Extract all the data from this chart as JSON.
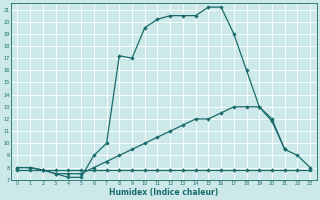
{
  "xlabel": "Humidex (Indice chaleur)",
  "bg_color": "#cce8e8",
  "line_color": "#1a6b6b",
  "grid_color": "#b0d8d8",
  "xlim": [
    -0.5,
    23.5
  ],
  "ylim": [
    7,
    21.5
  ],
  "xticks": [
    0,
    1,
    2,
    3,
    4,
    5,
    6,
    7,
    8,
    9,
    10,
    11,
    12,
    13,
    14,
    15,
    16,
    17,
    18,
    19,
    20,
    21,
    22,
    23
  ],
  "yticks": [
    7,
    8,
    9,
    10,
    11,
    12,
    13,
    14,
    15,
    16,
    17,
    18,
    19,
    20,
    21
  ],
  "line_main_x": [
    0,
    1,
    2,
    3,
    4,
    5,
    6,
    7,
    8,
    9,
    10,
    11,
    12,
    13,
    14,
    15,
    16,
    17,
    18,
    19,
    20,
    21,
    22,
    23
  ],
  "line_main_y": [
    8,
    8,
    7.8,
    7.5,
    7.2,
    7.2,
    9,
    10,
    17.2,
    17,
    19.5,
    20.2,
    20.5,
    20.5,
    20.5,
    21.2,
    21.2,
    19,
    16,
    13,
    12,
    9.5,
    9,
    8
  ],
  "line_mid_x": [
    0,
    1,
    2,
    3,
    4,
    5,
    6,
    7,
    8,
    9,
    10,
    11,
    12,
    13,
    14,
    15,
    16,
    17,
    18,
    19,
    20,
    21,
    22,
    23
  ],
  "line_mid_y": [
    8,
    8,
    7.8,
    7.5,
    7.5,
    7.5,
    8.0,
    8.5,
    9.0,
    9.5,
    10,
    10.5,
    11,
    11.5,
    12,
    12,
    12.5,
    13,
    13,
    13,
    11.8,
    9.5,
    null,
    null
  ],
  "line_bot_x": [
    0,
    1,
    2,
    3,
    4,
    5,
    6,
    7,
    8,
    9,
    10,
    11,
    12,
    13,
    14,
    15,
    16,
    17,
    18,
    19,
    20,
    21,
    22,
    23
  ],
  "line_bot_y": [
    7.8,
    7.8,
    7.8,
    7.8,
    7.8,
    7.8,
    7.8,
    7.8,
    7.8,
    7.8,
    7.8,
    7.8,
    7.8,
    7.8,
    7.8,
    7.8,
    7.8,
    7.8,
    7.8,
    7.8,
    7.8,
    7.8,
    7.8,
    7.8
  ]
}
